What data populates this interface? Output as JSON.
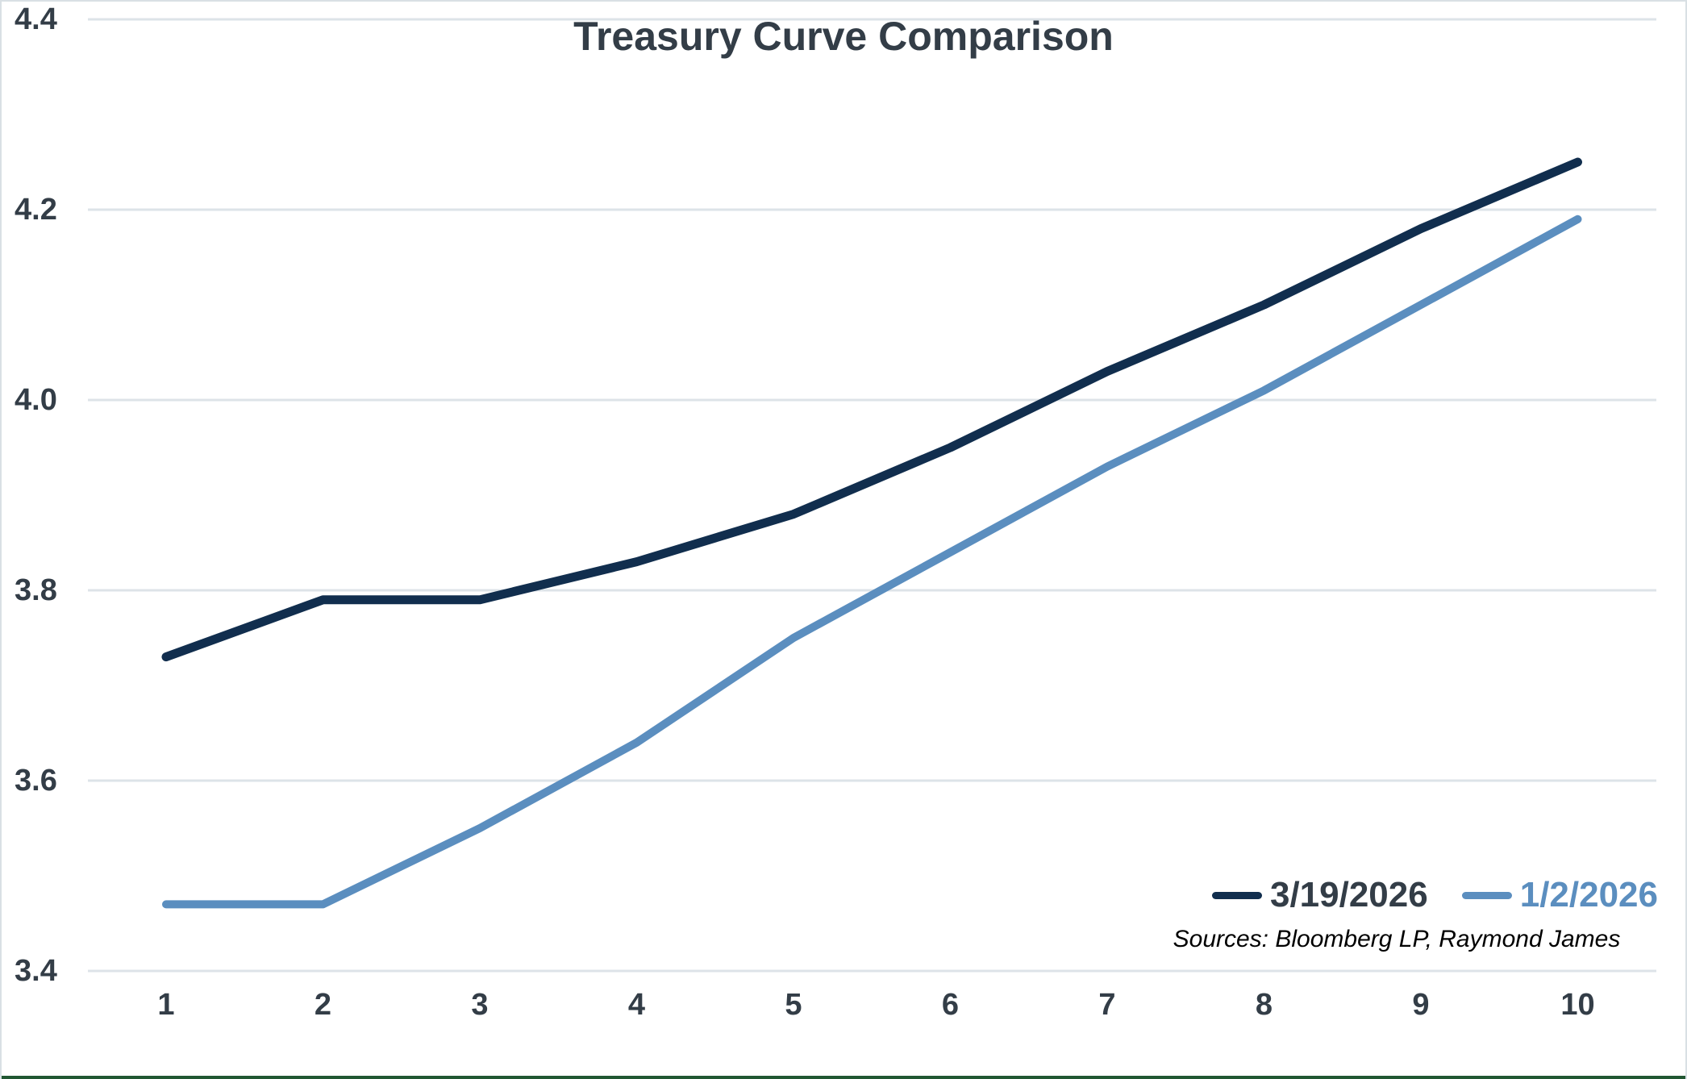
{
  "chart": {
    "colors": {
      "background": "#ffffff",
      "border_light": "#d9e0e4",
      "bottom_bar_green": "#215732",
      "gridline": "#dde3e8",
      "label": "#333d47",
      "sources_text": "#000000"
    },
    "legend_label_colors": [
      "#333d47",
      "#5b8ebf"
    ],
    "series_stroke_widths": [
      11,
      10
    ]
  },
  "chart_data": {
    "type": "line",
    "title": "Treasury Curve Comparison",
    "categories": [
      1,
      2,
      3,
      4,
      5,
      6,
      7,
      8,
      9,
      10
    ],
    "series": [
      {
        "name": "3/19/2026",
        "color": "#112e4e",
        "values": [
          3.73,
          3.79,
          3.79,
          3.83,
          3.88,
          3.95,
          4.03,
          4.1,
          4.18,
          4.25
        ]
      },
      {
        "name": "1/2/2026",
        "color": "#5b8ebf",
        "values": [
          3.47,
          3.47,
          3.55,
          3.64,
          3.75,
          3.84,
          3.93,
          4.01,
          4.1,
          4.19
        ]
      }
    ],
    "xlabel": "",
    "ylabel": "",
    "ylim": [
      3.4,
      4.4
    ],
    "y_ticks": [
      3.4,
      3.6,
      3.8,
      4.0,
      4.2,
      4.4
    ],
    "grid": true,
    "legend_position": "bottom-right",
    "annotations": [
      "Sources: Bloomberg LP, Raymond James"
    ]
  }
}
